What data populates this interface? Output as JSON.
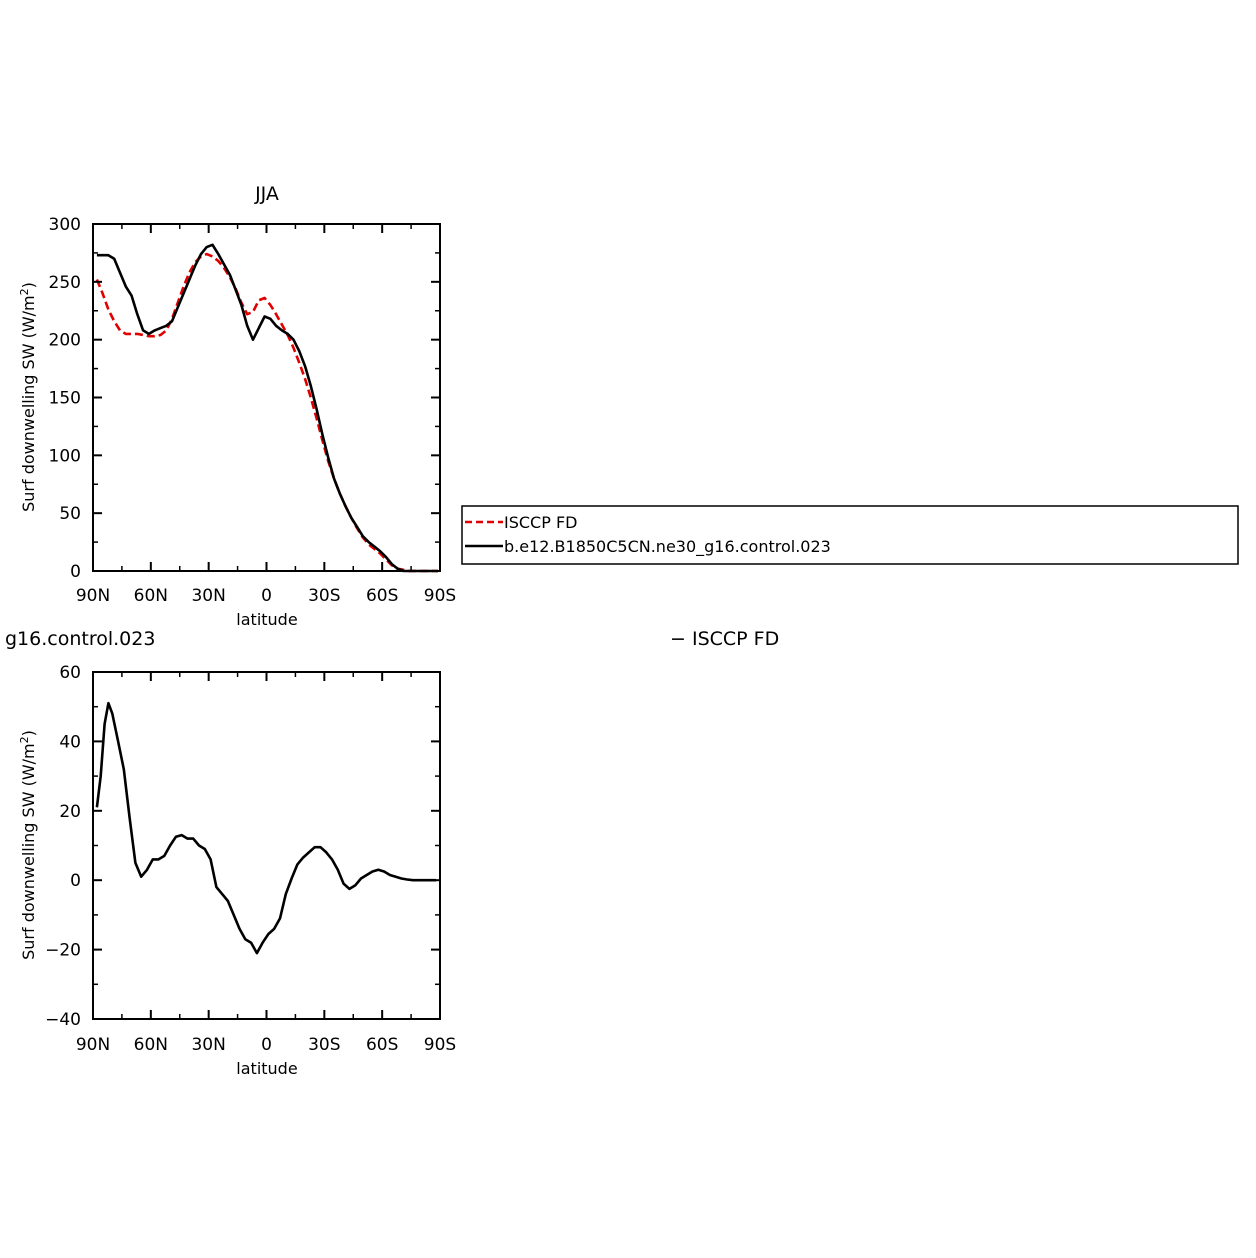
{
  "chart_data": [
    {
      "type": "line",
      "title": "JJA",
      "xlabel": "latitude",
      "ylabel_main": "Surf downwelling SW (W/m",
      "ylabel_sup": "2",
      "ylabel_end": ")",
      "xlim": [
        90,
        -90
      ],
      "ylim": [
        0,
        300
      ],
      "xticks": [
        90,
        60,
        30,
        0,
        -30,
        -60,
        -90
      ],
      "xtick_labels": [
        "90N",
        "60N",
        "30N",
        "0",
        "30S",
        "60S",
        "90S"
      ],
      "yticks": [
        0,
        50,
        100,
        150,
        200,
        250,
        300
      ],
      "ytick_labels": [
        "0",
        "50",
        "100",
        "150",
        "200",
        "250",
        "300"
      ],
      "legend_placement": "right",
      "series": [
        {
          "name": "ISCCP FD",
          "color": "#e00000",
          "dash": true,
          "x": [
            88,
            85,
            82,
            79,
            76,
            73,
            70,
            67,
            64,
            61,
            58,
            55,
            52,
            49,
            46,
            43,
            40,
            37,
            34,
            31,
            28,
            25,
            22,
            19,
            16,
            13,
            10,
            7,
            4,
            1,
            -2,
            -5,
            -8,
            -11,
            -14,
            -17,
            -20,
            -23,
            -26,
            -29,
            -32,
            -35,
            -38,
            -41,
            -44,
            -47,
            -50,
            -53,
            -56,
            -59,
            -62,
            -65,
            -68,
            -71,
            -74,
            -77,
            -80,
            -83,
            -86,
            -89
          ],
          "y": [
            252,
            240,
            226,
            216,
            208,
            205,
            205,
            205,
            204,
            203,
            203,
            204,
            208,
            218,
            232,
            246,
            258,
            267,
            272,
            274,
            272,
            268,
            262,
            254,
            244,
            232,
            222,
            224,
            234,
            236,
            230,
            222,
            213,
            204,
            193,
            180,
            166,
            150,
            132,
            113,
            95,
            80,
            67,
            56,
            46,
            37,
            29,
            23,
            19,
            15,
            10,
            5,
            2,
            1,
            0,
            0,
            0,
            0,
            0,
            0
          ]
        },
        {
          "name": "b.e12.B1850C5CN.ne30_g16.control.023",
          "color": "#000000",
          "dash": false,
          "x": [
            88,
            85,
            82,
            79,
            76,
            73,
            70,
            67,
            64,
            61,
            58,
            55,
            52,
            49,
            46,
            43,
            40,
            37,
            34,
            31,
            28,
            25,
            22,
            19,
            16,
            13,
            10,
            7,
            4,
            1,
            -2,
            -5,
            -8,
            -11,
            -14,
            -17,
            -20,
            -23,
            -26,
            -29,
            -32,
            -35,
            -38,
            -41,
            -44,
            -47,
            -50,
            -53,
            -56,
            -59,
            -62,
            -65,
            -68,
            -71,
            -74,
            -77,
            -80,
            -83,
            -86,
            -89
          ],
          "y": [
            273,
            273,
            273,
            270,
            258,
            246,
            238,
            222,
            208,
            205,
            208,
            210,
            212,
            216,
            228,
            240,
            252,
            264,
            274,
            280,
            282,
            274,
            265,
            256,
            243,
            230,
            212,
            200,
            210,
            220,
            218,
            212,
            208,
            205,
            200,
            190,
            177,
            160,
            140,
            118,
            98,
            80,
            67,
            56,
            46,
            38,
            30,
            25,
            21,
            17,
            12,
            6,
            2,
            0,
            0,
            0,
            0,
            0,
            0,
            0
          ]
        }
      ]
    },
    {
      "type": "line",
      "title": "",
      "left_label": "g16.control.023",
      "center_label": "− ISCCP FD",
      "xlabel": "latitude",
      "ylabel_main": "Surf downwelling SW (W/m",
      "ylabel_sup": "2",
      "ylabel_end": ")",
      "xlim": [
        90,
        -90
      ],
      "ylim": [
        -40,
        60
      ],
      "xticks": [
        90,
        60,
        30,
        0,
        -30,
        -60,
        -90
      ],
      "xtick_labels": [
        "90N",
        "60N",
        "30N",
        "0",
        "30S",
        "60S",
        "90S"
      ],
      "yticks": [
        -40,
        -20,
        0,
        20,
        40,
        60
      ],
      "ytick_labels": [
        "−40",
        "−20",
        "0",
        "20",
        "40",
        "60"
      ],
      "series": [
        {
          "color": "#000000",
          "dash": false,
          "x": [
            88,
            86,
            84,
            82,
            80,
            77,
            74,
            71,
            68,
            65,
            62,
            59,
            56,
            53,
            50,
            47,
            44,
            41,
            38,
            35,
            32,
            29,
            26,
            23,
            20,
            17,
            14,
            11,
            8,
            5,
            2,
            -1,
            -4,
            -7,
            -10,
            -13,
            -16,
            -19,
            -22,
            -25,
            -28,
            -31,
            -34,
            -37,
            -40,
            -43,
            -46,
            -49,
            -52,
            -55,
            -58,
            -61,
            -64,
            -67,
            -70,
            -73,
            -76,
            -79,
            -82,
            -85,
            -88
          ],
          "y": [
            21,
            30,
            45,
            51,
            48,
            40,
            32,
            18,
            5,
            1,
            3,
            6,
            6,
            7,
            10,
            12.5,
            13,
            12,
            12,
            10,
            9,
            6,
            -2,
            -4,
            -6,
            -10,
            -14,
            -17,
            -18,
            -21,
            -18,
            -15.5,
            -14,
            -11,
            -4,
            0.5,
            4.5,
            6.5,
            8,
            9.5,
            9.5,
            8,
            6,
            3,
            -1,
            -2.5,
            -1.5,
            0.5,
            1.5,
            2.5,
            3,
            2.5,
            1.5,
            1,
            0.5,
            0.2,
            0,
            0,
            0,
            0,
            0
          ]
        }
      ]
    }
  ]
}
